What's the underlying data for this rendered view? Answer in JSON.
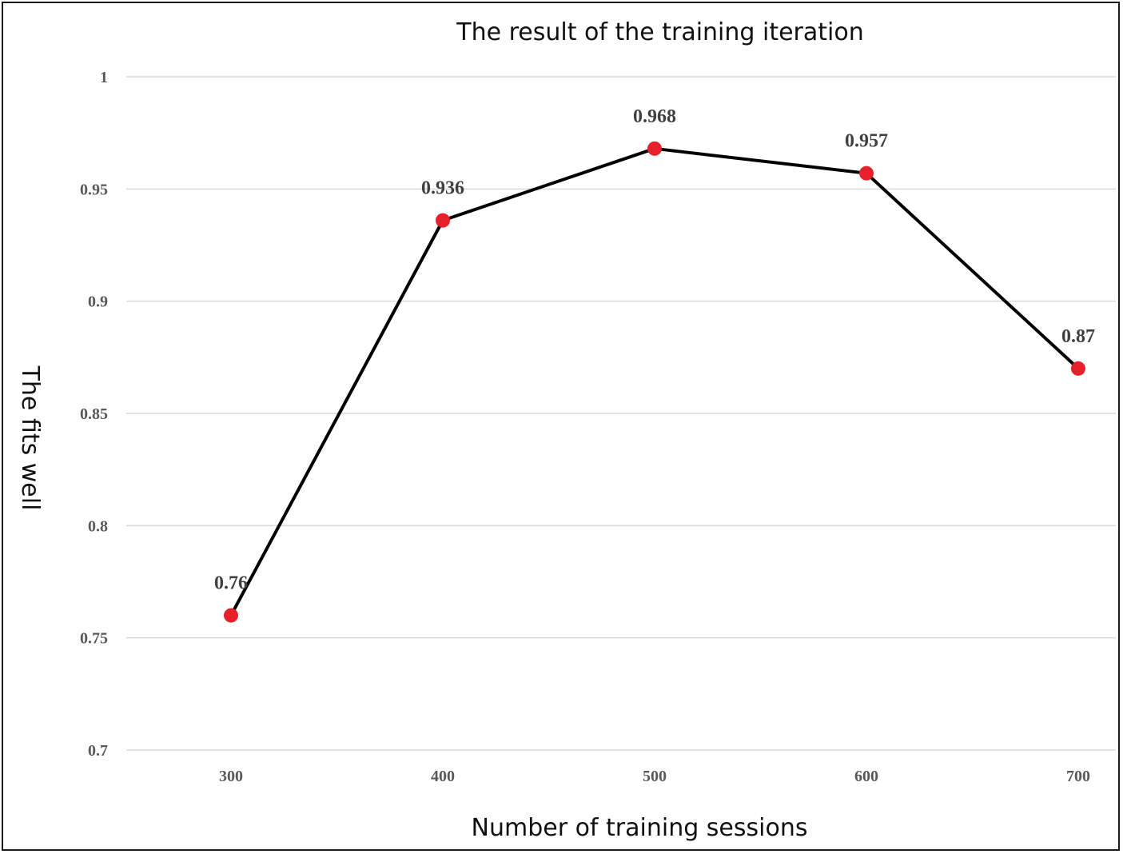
{
  "chart_data": {
    "type": "line",
    "title": "The result of the training iteration",
    "xlabel": "Number of training sessions",
    "ylabel": "The fits well",
    "categories": [
      "300",
      "400",
      "500",
      "600",
      "700"
    ],
    "series": [
      {
        "values": [
          0.76,
          0.936,
          0.968,
          0.957,
          0.87
        ],
        "data_labels": [
          "0.76",
          "0.936",
          "0.968",
          "0.957",
          "0.87"
        ],
        "line_color": "#000000",
        "marker_color": "#e8202a"
      }
    ],
    "ylim": [
      0.7,
      1
    ],
    "yticks": [
      0.7,
      0.75,
      0.8,
      0.85,
      0.9,
      0.95,
      1
    ],
    "ytick_labels": [
      "0.7",
      "0.75",
      "0.8",
      "0.85",
      "0.9",
      "0.95",
      "1"
    ],
    "grid": true,
    "legend": "none"
  }
}
